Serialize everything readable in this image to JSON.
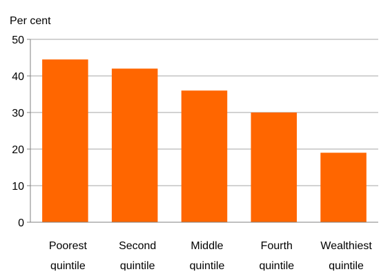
{
  "chart_data": {
    "type": "bar",
    "title": "",
    "ylabel": "Per cent",
    "xlabel": "",
    "categories": [
      [
        "Poorest",
        "quintile"
      ],
      [
        "Second",
        "quintile"
      ],
      [
        "Middle",
        "quintile"
      ],
      [
        "Fourth",
        "quintile"
      ],
      [
        "Wealthiest",
        "quintile"
      ]
    ],
    "values": [
      44.5,
      42,
      36,
      30,
      19
    ],
    "ylim": [
      0,
      50
    ],
    "yticks": [
      0,
      10,
      20,
      30,
      40,
      50
    ],
    "grid": true,
    "legend": "none",
    "colors": {
      "bar": "#ff6600",
      "grid": "#a6a6a6",
      "axis": "#7f7f7f"
    }
  }
}
